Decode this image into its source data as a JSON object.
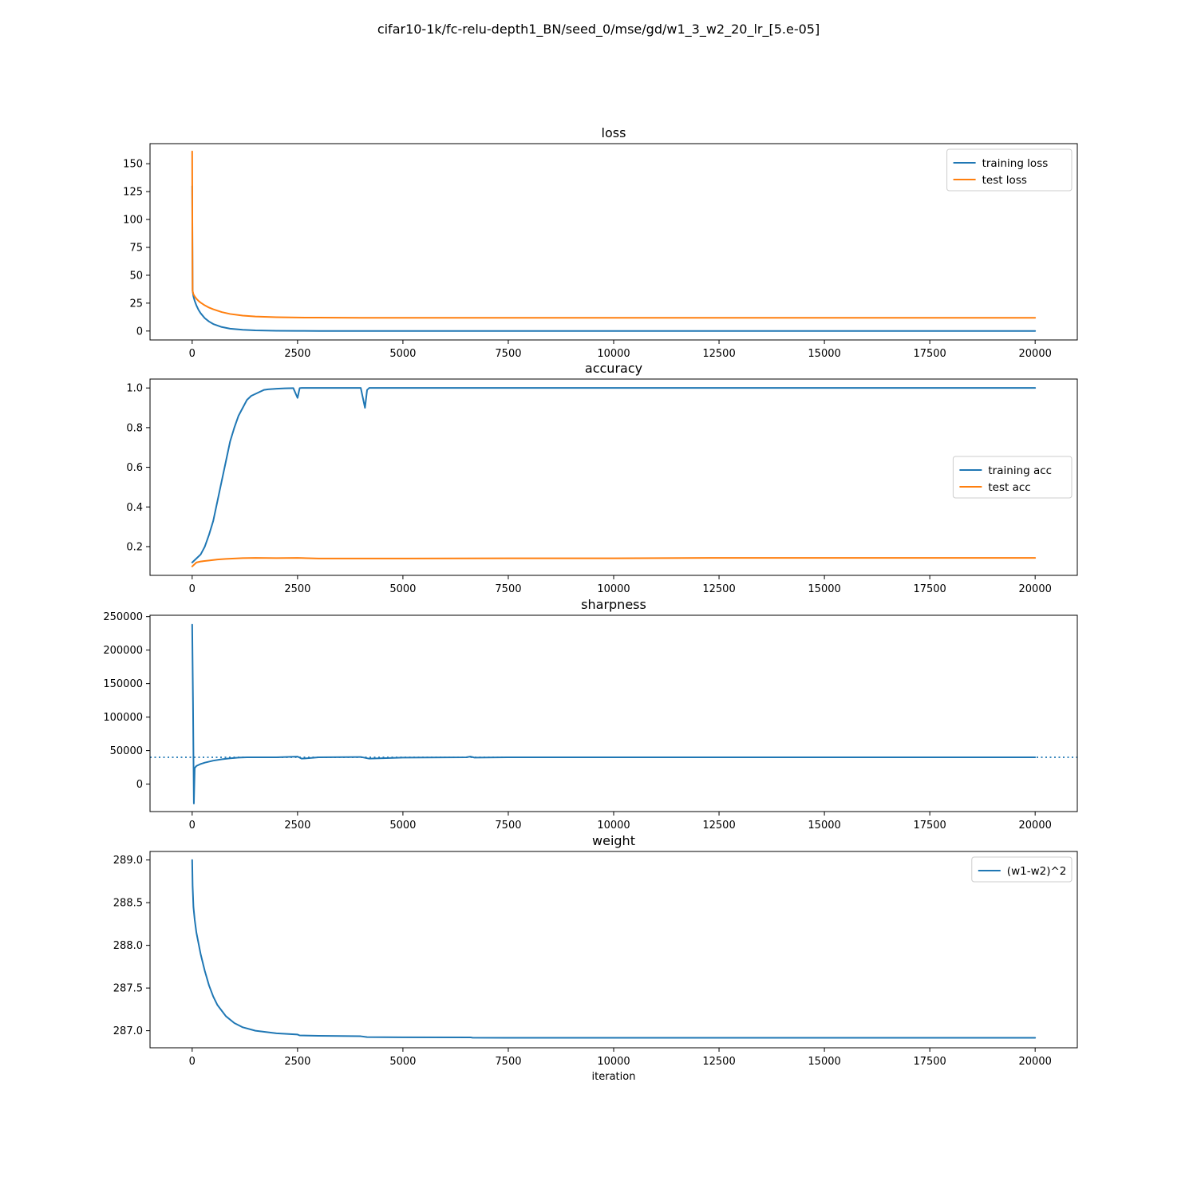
{
  "suptitle": "cifar10-1k/fc-relu-depth1_BN/seed_0/mse/gd/w1_3_w2_20_lr_[5.e-05]",
  "colors": {
    "blue": "#1f77b4",
    "orange": "#ff7f0e"
  },
  "chart_data": [
    {
      "id": "loss",
      "type": "line",
      "title": "loss",
      "xlabel": "",
      "xlim": [
        -1000,
        21000
      ],
      "ylim": [
        -8,
        168
      ],
      "xticks": [
        0,
        2500,
        5000,
        7500,
        10000,
        12500,
        15000,
        17500,
        20000
      ],
      "yticks": [
        0,
        25,
        50,
        75,
        100,
        125,
        150
      ],
      "legend": "upper right",
      "series": [
        {
          "name": "training loss",
          "color": "#1f77b4",
          "x": [
            0,
            10,
            30,
            60,
            100,
            150,
            200,
            300,
            400,
            500,
            700,
            900,
            1200,
            1500,
            2000,
            2500,
            3000,
            4000,
            5000,
            7500,
            10000,
            15000,
            20000
          ],
          "y": [
            130,
            36,
            31,
            27,
            23,
            19,
            16,
            11.5,
            8.5,
            6.3,
            3.6,
            2.1,
            1.1,
            0.6,
            0.25,
            0.12,
            0.08,
            0.05,
            0.03,
            0.02,
            0.01,
            0.01,
            0.01
          ]
        },
        {
          "name": "test loss",
          "color": "#ff7f0e",
          "x": [
            0,
            5,
            10,
            30,
            60,
            100,
            150,
            200,
            300,
            400,
            500,
            700,
            900,
            1200,
            1500,
            2000,
            2500,
            3000,
            4000,
            5000,
            7500,
            10000,
            15000,
            20000
          ],
          "y": [
            161,
            80,
            36,
            33,
            31,
            29,
            27,
            25.5,
            23,
            21,
            19.5,
            17,
            15.3,
            13.8,
            13,
            12.4,
            12.1,
            12,
            11.9,
            11.9,
            11.9,
            11.9,
            11.9,
            11.9
          ]
        }
      ]
    },
    {
      "id": "accuracy",
      "type": "line",
      "title": "accuracy",
      "xlabel": "",
      "xlim": [
        -1000,
        21000
      ],
      "ylim": [
        0.055,
        1.045
      ],
      "xticks": [
        0,
        2500,
        5000,
        7500,
        10000,
        12500,
        15000,
        17500,
        20000
      ],
      "yticks": [
        0.2,
        0.4,
        0.6,
        0.8,
        1.0
      ],
      "legend": "center right",
      "series": [
        {
          "name": "training acc",
          "color": "#1f77b4",
          "x": [
            0,
            100,
            200,
            300,
            400,
            500,
            600,
            700,
            800,
            900,
            1000,
            1100,
            1200,
            1300,
            1400,
            1500,
            1600,
            1700,
            1800,
            2000,
            2200,
            2400,
            2500,
            2550,
            2600,
            3000,
            4000,
            4100,
            4150,
            4200,
            5000,
            6600,
            6650,
            7500,
            10000,
            15000,
            20000
          ],
          "y": [
            0.12,
            0.14,
            0.16,
            0.2,
            0.26,
            0.33,
            0.43,
            0.53,
            0.63,
            0.73,
            0.8,
            0.86,
            0.9,
            0.94,
            0.96,
            0.97,
            0.98,
            0.99,
            0.993,
            0.996,
            0.998,
            0.999,
            0.95,
            0.999,
            1.0,
            1.0,
            1.0,
            0.9,
            0.99,
            1.0,
            1.0,
            1.0,
            1.0,
            1.0,
            1.0,
            1.0,
            1.0
          ]
        },
        {
          "name": "test acc",
          "color": "#ff7f0e",
          "x": [
            0,
            100,
            200,
            400,
            600,
            800,
            1000,
            1200,
            1500,
            2000,
            2500,
            3000,
            4000,
            5000,
            7500,
            10000,
            12500,
            15000,
            20000
          ],
          "y": [
            0.1,
            0.12,
            0.125,
            0.13,
            0.135,
            0.138,
            0.14,
            0.142,
            0.143,
            0.142,
            0.143,
            0.14,
            0.14,
            0.14,
            0.141,
            0.141,
            0.143,
            0.143,
            0.143
          ]
        }
      ]
    },
    {
      "id": "sharpness",
      "type": "line",
      "title": "sharpness",
      "xlabel": "",
      "xlim": [
        -1000,
        21000
      ],
      "ylim": [
        -41000,
        252000
      ],
      "xticks": [
        0,
        2500,
        5000,
        7500,
        10000,
        12500,
        15000,
        17500,
        20000
      ],
      "yticks": [
        0,
        50000,
        100000,
        150000,
        200000,
        250000
      ],
      "hline": {
        "y": 40000,
        "style": "dotted"
      },
      "series": [
        {
          "name": "",
          "color": "#1f77b4",
          "x": [
            0,
            20,
            40,
            60,
            100,
            200,
            300,
            500,
            700,
            900,
            1100,
            1300,
            1500,
            2000,
            2500,
            2600,
            3000,
            4000,
            4200,
            5000,
            6500,
            6600,
            6700,
            7500,
            10000,
            12500,
            15000,
            17500,
            20000
          ],
          "y": [
            238000,
            120000,
            -29000,
            24000,
            27000,
            30000,
            32000,
            35000,
            37000,
            38500,
            39500,
            40000,
            40000,
            40000,
            41000,
            38000,
            40000,
            40500,
            38000,
            39500,
            40000,
            41000,
            39500,
            40000,
            40000,
            40000,
            40000,
            40000,
            40000
          ]
        }
      ]
    },
    {
      "id": "weight",
      "type": "line",
      "title": "weight",
      "xlabel": "iteration",
      "xlim": [
        -1000,
        21000
      ],
      "ylim": [
        286.8,
        289.1
      ],
      "xticks": [
        0,
        2500,
        5000,
        7500,
        10000,
        12500,
        15000,
        17500,
        20000
      ],
      "yticks": [
        287.0,
        287.5,
        288.0,
        288.5,
        289.0
      ],
      "legend": "upper right",
      "series": [
        {
          "name": "(w1-w2)^2",
          "color": "#1f77b4",
          "x": [
            0,
            10,
            30,
            60,
            100,
            200,
            300,
            400,
            500,
            600,
            800,
            1000,
            1200,
            1500,
            2000,
            2500,
            2550,
            3000,
            4000,
            4150,
            5000,
            6600,
            6650,
            7500,
            10000,
            15000,
            20000
          ],
          "y": [
            289.0,
            288.7,
            288.45,
            288.3,
            288.15,
            287.9,
            287.7,
            287.53,
            287.4,
            287.3,
            287.17,
            287.09,
            287.04,
            287.0,
            286.97,
            286.955,
            286.945,
            286.94,
            286.935,
            286.925,
            286.923,
            286.922,
            286.918,
            286.917,
            286.917,
            286.917,
            286.917
          ]
        }
      ]
    }
  ]
}
